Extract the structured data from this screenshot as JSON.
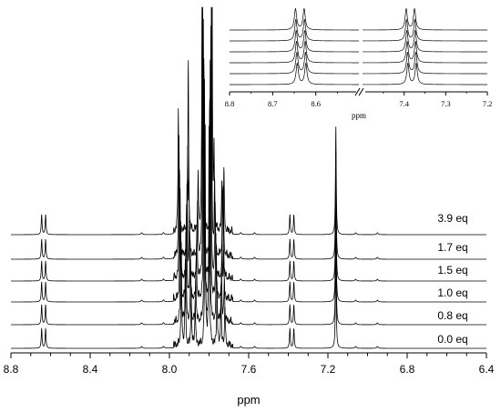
{
  "chart_data": {
    "type": "line",
    "title": "",
    "xlabel": "ppm",
    "ylabel": "",
    "x_reversed": true,
    "xlim": [
      8.8,
      6.4
    ],
    "xticks": [
      "8.8",
      "8.4",
      "8.0",
      "7.6",
      "7.2",
      "6.8",
      "6.4"
    ],
    "xtick_values": [
      8.8,
      8.4,
      8.0,
      7.6,
      7.2,
      6.8,
      6.4
    ],
    "grid": false,
    "legend": "none",
    "series": [
      {
        "name": "0.0 eq"
      },
      {
        "name": "0.8 eq"
      },
      {
        "name": "1.0 eq"
      },
      {
        "name": "1.5 eq"
      },
      {
        "name": "1.7 eq"
      },
      {
        "name": "3.9 eq"
      }
    ],
    "peaks_ppm": {
      "doublet_a": [
        8.645,
        8.625
      ],
      "cluster_b": [
        7.94,
        7.92,
        7.89,
        7.87,
        7.82,
        7.8,
        7.76,
        7.74,
        7.72
      ],
      "doublet_c": [
        7.392,
        7.372
      ],
      "singlet_d": [
        7.16
      ]
    },
    "inset": {
      "type": "line",
      "xlabel": "ppm",
      "axis_break": true,
      "left_segment": {
        "xlim": [
          8.8,
          8.5
        ],
        "xticks": [
          "8.8",
          "8.7",
          "8.6"
        ],
        "xtick_values": [
          8.8,
          8.7,
          8.6
        ]
      },
      "right_segment": {
        "xlim": [
          7.5,
          7.2
        ],
        "xticks": [
          "7.4",
          "7.3",
          "7.2"
        ],
        "xtick_values": [
          7.4,
          7.3,
          7.2
        ]
      },
      "peaks_ppm": {
        "left_doublet": [
          8.643,
          8.623
        ],
        "right_doublet": [
          7.391,
          7.371
        ]
      },
      "trace_count": 6
    }
  }
}
